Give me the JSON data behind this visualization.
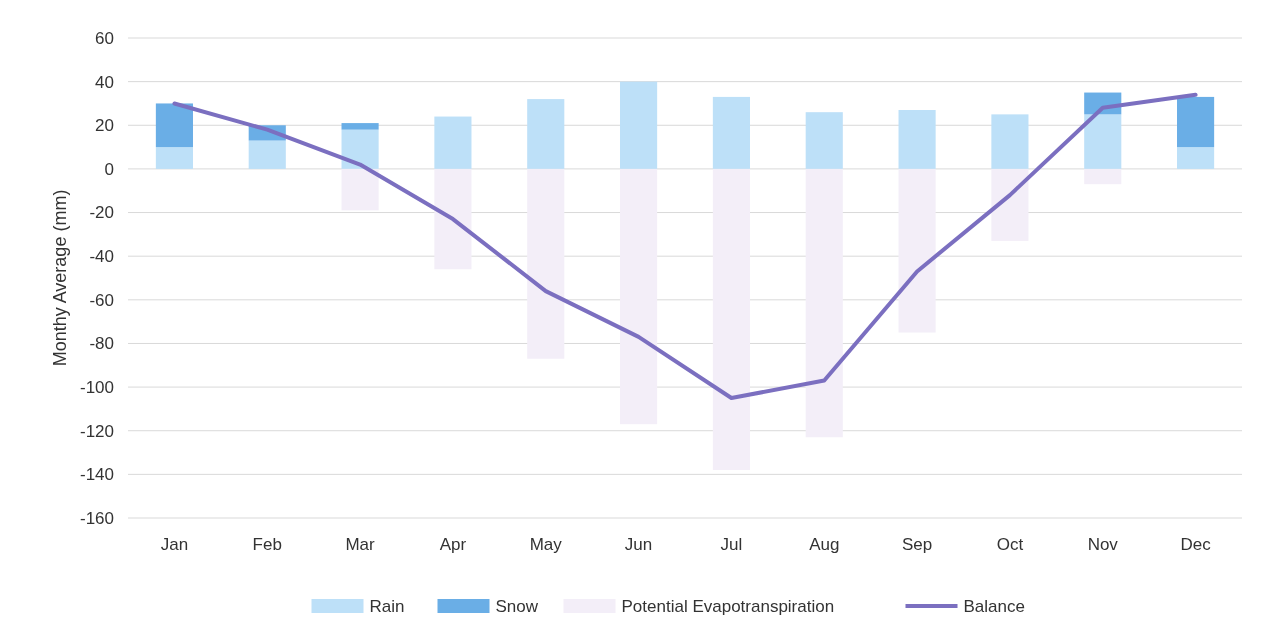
{
  "chart_data": {
    "type": "bar",
    "stacked": true,
    "ylabel": "Monthy Average (mm)",
    "categories": [
      "Jan",
      "Feb",
      "Mar",
      "Apr",
      "May",
      "Jun",
      "Jul",
      "Aug",
      "Sep",
      "Oct",
      "Nov",
      "Dec"
    ],
    "series": [
      {
        "name": "Rain",
        "color": "#bde0f8",
        "values": [
          10,
          13,
          18,
          24,
          32,
          40,
          33,
          26,
          27,
          25,
          25,
          10
        ]
      },
      {
        "name": "Snow",
        "color": "#6aaee6",
        "values": [
          20,
          7,
          3,
          0,
          0,
          0,
          0,
          0,
          0,
          0,
          10,
          23
        ]
      },
      {
        "name": "Potential Evapotranspiration",
        "color": "#f3eef8",
        "values": [
          0,
          0,
          -19,
          -46,
          -87,
          -117,
          -138,
          -123,
          -75,
          -33,
          -7,
          0
        ]
      },
      {
        "name": "Balance",
        "type": "line",
        "color": "#7b6fc0",
        "values": [
          30,
          18,
          2,
          -23,
          -56,
          -77,
          -105,
          -97,
          -47,
          -12,
          28,
          34
        ]
      }
    ],
    "ylim": [
      -160,
      60
    ],
    "yticks": [
      -160,
      -140,
      -120,
      -100,
      -80,
      -60,
      -40,
      -20,
      0,
      20,
      40,
      60
    ],
    "grid": "y",
    "legend": "bottom",
    "marker": "none"
  }
}
